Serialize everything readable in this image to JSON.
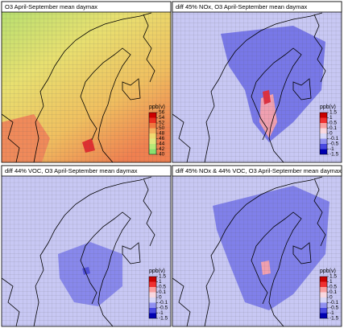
{
  "panels": [
    {
      "title": "O3 April-September mean daymax",
      "field": "abs",
      "colorbar": {
        "unit": "ppb(v)",
        "labels": [
          "56",
          "54",
          "52",
          "50",
          "48",
          "46",
          "44",
          "42",
          "40"
        ],
        "colors": [
          "#cc0000",
          "#e83020",
          "#f07840",
          "#f4b060",
          "#f0d870",
          "#e0e880",
          "#b8e878",
          "#88e070"
        ]
      }
    },
    {
      "title": "diff 45% NOx, O3 April-September mean daymax",
      "field": "nox",
      "colorbar": {
        "unit": "ppb(v)",
        "labels": [
          "1.5",
          "1",
          "0.5",
          "0.1",
          "0",
          "-0.1",
          "-0.5",
          "-1",
          "-1.5"
        ],
        "colors": [
          "#c80000",
          "#f03030",
          "#f8a0a0",
          "#f8d8e0",
          "#d8d8f8",
          "#9090f0",
          "#4848e0",
          "#0000b0"
        ]
      }
    },
    {
      "title": "diff 44% VOC, O3 April-September mean daymax",
      "field": "voc",
      "colorbar": {
        "unit": "ppb(v)",
        "labels": [
          "1.5",
          "1",
          "0.5",
          "0.1",
          "0",
          "-0.1",
          "-0.5",
          "-1",
          "-1.5"
        ],
        "colors": [
          "#c80000",
          "#f03030",
          "#f8a0a0",
          "#f8d8e0",
          "#d8d8f8",
          "#9090f0",
          "#4848e0",
          "#0000b0"
        ]
      }
    },
    {
      "title": "diff 45% NOx & 44% VOC, O3 April-September mean daymax",
      "field": "both",
      "colorbar": {
        "unit": "ppb(v)",
        "labels": [
          "1.5",
          "1",
          "0.5",
          "0.1",
          "0",
          "-0.1",
          "-0.5",
          "-1",
          "-1.5"
        ],
        "colors": [
          "#c80000",
          "#f03030",
          "#f8a0a0",
          "#f8d8e0",
          "#d8d8f8",
          "#9090f0",
          "#4848e0",
          "#0000b0"
        ]
      }
    }
  ]
}
